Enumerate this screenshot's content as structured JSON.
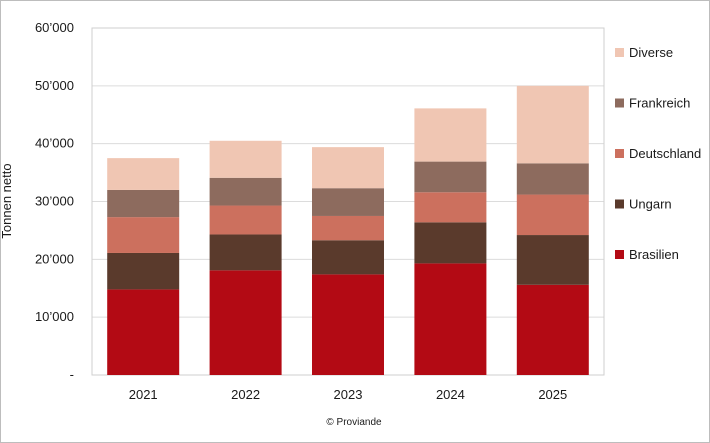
{
  "chart_data": {
    "type": "bar",
    "stacked": true,
    "title": "",
    "xlabel": "",
    "ylabel": "Tonnen netto",
    "ylim": [
      0,
      60000
    ],
    "ytick_values": [
      0,
      10000,
      20000,
      30000,
      40000,
      50000,
      60000
    ],
    "ytick_labels": [
      "-",
      "10’000",
      "20’000",
      "30’000",
      "40’000",
      "50’000",
      "60’000"
    ],
    "grid": true,
    "legend_position": "right",
    "categories": [
      "2021",
      "2022",
      "2023",
      "2024",
      "2025"
    ],
    "series": [
      {
        "name": "Brasilien",
        "color": "#b30a14",
        "values": [
          14800,
          18100,
          17400,
          19300,
          15600
        ]
      },
      {
        "name": "Ungarn",
        "color": "#5a3a2c",
        "values": [
          6300,
          6200,
          5900,
          7100,
          8600
        ]
      },
      {
        "name": "Deutschland",
        "color": "#cc705e",
        "values": [
          6200,
          5000,
          4200,
          5200,
          7000
        ]
      },
      {
        "name": "Frankreich",
        "color": "#8d6b5e",
        "values": [
          4700,
          4800,
          4800,
          5300,
          5400
        ]
      },
      {
        "name": "Diverse",
        "color": "#f0c6b3",
        "values": [
          5500,
          6400,
          7100,
          9200,
          13400
        ]
      }
    ],
    "source": "© Proviande"
  }
}
